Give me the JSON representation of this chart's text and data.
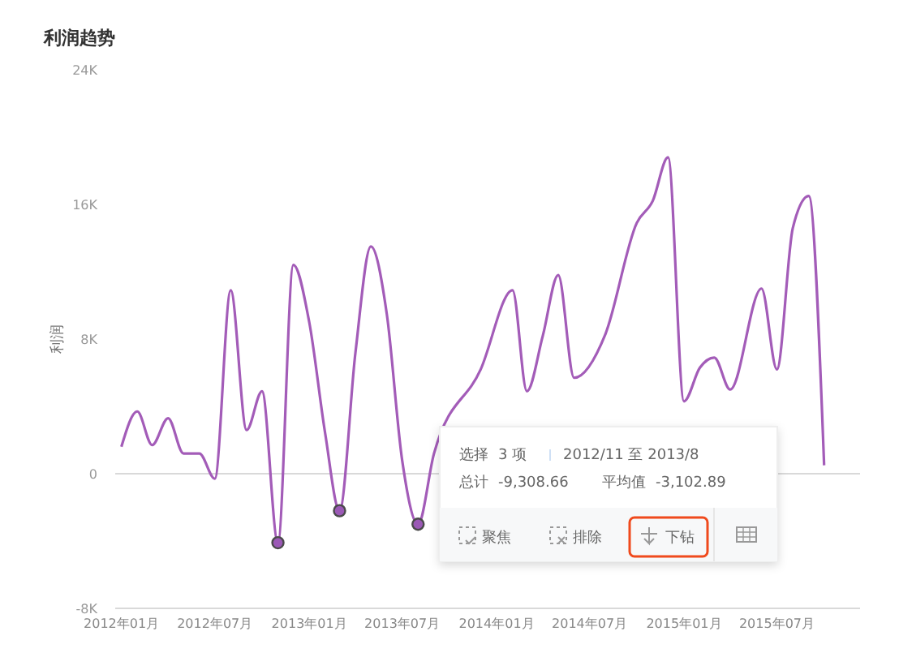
{
  "chart_data": {
    "type": "line",
    "title": "利润趋势",
    "ylabel": "利润",
    "x": [
      "2012-01",
      "2012-02",
      "2012-03",
      "2012-04",
      "2012-05",
      "2012-06",
      "2012-07",
      "2012-08",
      "2012-09",
      "2012-10",
      "2012-11",
      "2012-12",
      "2013-01",
      "2013-02",
      "2013-03",
      "2013-04",
      "2013-05",
      "2013-06",
      "2013-07",
      "2013-08",
      "2013-09",
      "2013-10",
      "2013-11",
      "2013-12",
      "2014-01",
      "2014-02",
      "2014-03",
      "2014-04",
      "2014-05",
      "2014-06",
      "2014-07",
      "2014-08",
      "2014-09",
      "2014-10",
      "2014-11",
      "2014-12",
      "2015-01",
      "2015-02",
      "2015-03",
      "2015-04",
      "2015-05",
      "2015-06",
      "2015-07",
      "2015-08",
      "2015-09",
      "2015-10"
    ],
    "series": [
      {
        "color": "#a35cb8",
        "marker": "none",
        "values": [
          1600,
          3700,
          1700,
          3300,
          1200,
          1200,
          -300,
          10900,
          2600,
          4900,
          -4100,
          12400,
          9000,
          2400,
          -2200,
          7200,
          13500,
          9500,
          800,
          -3000,
          1200,
          null,
          null,
          6200,
          null,
          10900,
          4900,
          8200,
          11800,
          5700,
          null,
          8300,
          null,
          14900,
          16200,
          18800,
          4300,
          6300,
          6900,
          5000,
          null,
          11000,
          6200,
          14600,
          16500,
          500
        ]
      },
      {
        "type": "scatter",
        "color": "#9b59b6",
        "marker": "circle",
        "x": [
          "2012-11",
          "2013-03",
          "2013-08"
        ],
        "values": [
          -4100,
          -2200,
          -3000
        ]
      }
    ],
    "xlim": [
      "2011-12-20",
      "2015-12-10"
    ],
    "xticks": [
      {
        "value": "2012-01",
        "label": "2012年01月"
      },
      {
        "value": "2012-07",
        "label": "2012年07月"
      },
      {
        "value": "2013-01",
        "label": "2013年01月"
      },
      {
        "value": "2013-07",
        "label": "2013年07月"
      },
      {
        "value": "2014-01",
        "label": "2014年01月"
      },
      {
        "value": "2014-07",
        "label": "2014年07月"
      },
      {
        "value": "2015-01",
        "label": "2015年01月"
      },
      {
        "value": "2015-07",
        "label": "2015年07月"
      }
    ],
    "ylim": [
      -8000,
      24000
    ],
    "yticks": [
      {
        "value": -8000,
        "label": "-8K"
      },
      {
        "value": 0,
        "label": "0"
      },
      {
        "value": 8000,
        "label": "8K"
      },
      {
        "value": 16000,
        "label": "16K"
      },
      {
        "value": 24000,
        "label": "24K"
      }
    ],
    "ref_lines": [
      {
        "axis": "y",
        "value": 0,
        "color": "#d9d9d9"
      }
    ],
    "grid": false,
    "annotations": [
      "选择",
      "3 项",
      "2012/11 至 2013/8",
      "总计",
      "-9,308.66",
      "平均值",
      "-3,102.89",
      "聚焦",
      "排除",
      "下钻"
    ]
  }
}
